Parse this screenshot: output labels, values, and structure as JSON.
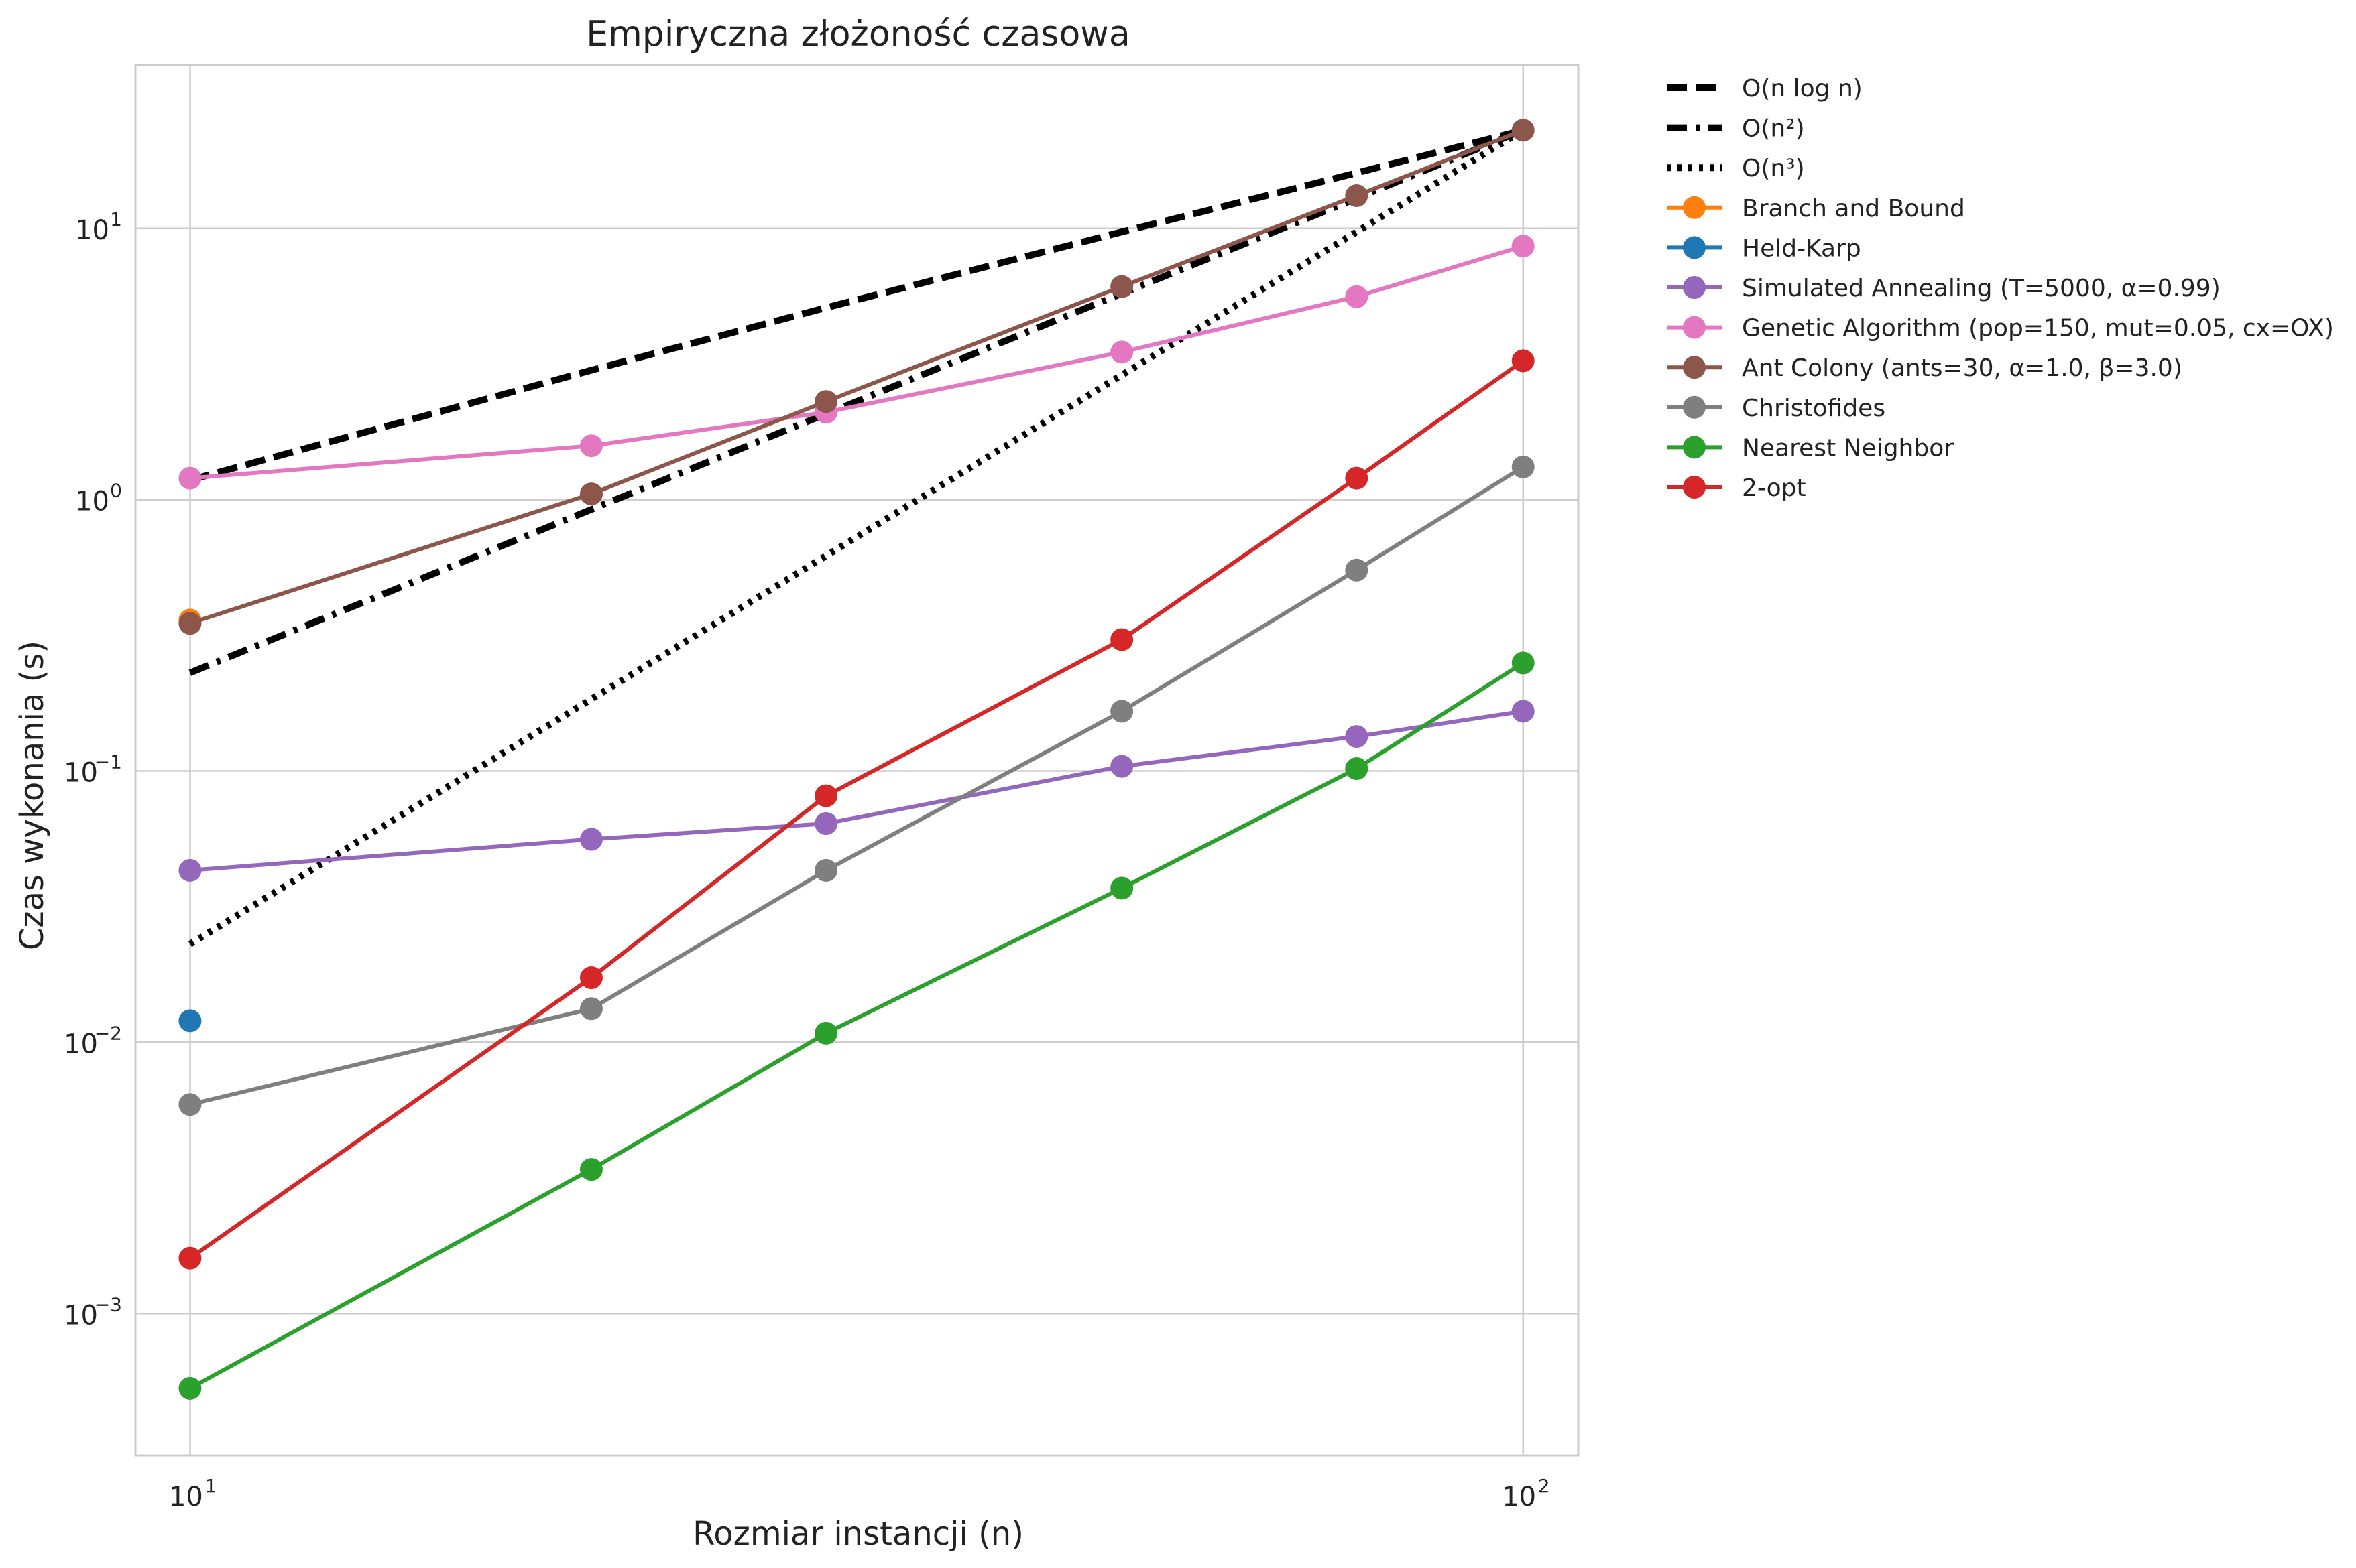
{
  "chart_data": {
    "type": "line",
    "title": "Empiryczna złożoność czasowa",
    "xlabel": "Rozmiar instancji (n)",
    "ylabel": "Czas wykonania (s)",
    "x_scale": "log",
    "y_scale": "log",
    "xlim": [
      9.1,
      110
    ],
    "ylim": [
      0.0003,
      40
    ],
    "x_ticks": [
      {
        "value": 10,
        "base": "10",
        "exp": "1"
      },
      {
        "value": 100,
        "base": "10",
        "exp": "2"
      }
    ],
    "y_ticks": [
      {
        "value": 0.001,
        "base": "10",
        "exp": "−3"
      },
      {
        "value": 0.01,
        "base": "10",
        "exp": "−2"
      },
      {
        "value": 0.1,
        "base": "10",
        "exp": "−1"
      },
      {
        "value": 1,
        "base": "10",
        "exp": "0"
      },
      {
        "value": 10,
        "base": "10",
        "exp": "1"
      }
    ],
    "grid": true,
    "legend_position": "outside-right",
    "series": [
      {
        "name": "O(n log n)",
        "style": "dashed",
        "color": "#000000",
        "markers": false,
        "x": [
          10,
          20,
          30,
          50,
          75,
          100
        ],
        "y": [
          1.18,
          3.0,
          5.1,
          9.7,
          16.0,
          23.0
        ]
      },
      {
        "name": "O(n²)",
        "style": "dashdot",
        "color": "#000000",
        "markers": false,
        "x": [
          10,
          20,
          30,
          50,
          75,
          100
        ],
        "y": [
          0.23,
          0.92,
          2.07,
          5.75,
          12.9,
          23.0
        ]
      },
      {
        "name": "O(n³)",
        "style": "dotted",
        "color": "#000000",
        "markers": false,
        "x": [
          10,
          20,
          30,
          50,
          75,
          100
        ],
        "y": [
          0.023,
          0.184,
          0.621,
          2.88,
          9.7,
          23.0
        ]
      },
      {
        "name": "Branch and Bound",
        "style": "solid",
        "color": "#ff7f0e",
        "markers": true,
        "x": [
          10
        ],
        "y": [
          0.36
        ]
      },
      {
        "name": "Held-Karp",
        "style": "solid",
        "color": "#1f77b4",
        "markers": true,
        "x": [
          10
        ],
        "y": [
          0.012
        ]
      },
      {
        "name": "Simulated Annealing (T=5000, α=0.99)",
        "style": "solid",
        "color": "#9467bd",
        "markers": true,
        "x": [
          10,
          20,
          30,
          50,
          75,
          100
        ],
        "y": [
          0.043,
          0.056,
          0.064,
          0.104,
          0.134,
          0.166
        ]
      },
      {
        "name": "Genetic Algorithm (pop=150, mut=0.05, cx=OX)",
        "style": "solid",
        "color": "#e377c2",
        "markers": true,
        "x": [
          10,
          20,
          30,
          50,
          75,
          100
        ],
        "y": [
          1.2,
          1.58,
          2.1,
          3.5,
          5.6,
          8.6
        ]
      },
      {
        "name": "Ant Colony (ants=30, α=1.0, β=3.0)",
        "style": "solid",
        "color": "#8c564b",
        "markers": true,
        "x": [
          10,
          20,
          30,
          50,
          75,
          100
        ],
        "y": [
          0.35,
          1.05,
          2.3,
          6.1,
          13.2,
          23.0
        ]
      },
      {
        "name": "Christofides",
        "style": "solid",
        "color": "#7f7f7f",
        "markers": true,
        "x": [
          10,
          20,
          30,
          50,
          75,
          100
        ],
        "y": [
          0.0059,
          0.0133,
          0.043,
          0.166,
          0.55,
          1.32
        ]
      },
      {
        "name": "Nearest Neighbor",
        "style": "solid",
        "color": "#2ca02c",
        "markers": true,
        "x": [
          10,
          20,
          30,
          50,
          75,
          100
        ],
        "y": [
          0.00053,
          0.0034,
          0.0108,
          0.037,
          0.102,
          0.25
        ]
      },
      {
        "name": "2-opt",
        "style": "solid",
        "color": "#d62728",
        "markers": true,
        "x": [
          10,
          20,
          30,
          50,
          75,
          100
        ],
        "y": [
          0.0016,
          0.0173,
          0.081,
          0.305,
          1.2,
          3.25
        ]
      }
    ]
  }
}
